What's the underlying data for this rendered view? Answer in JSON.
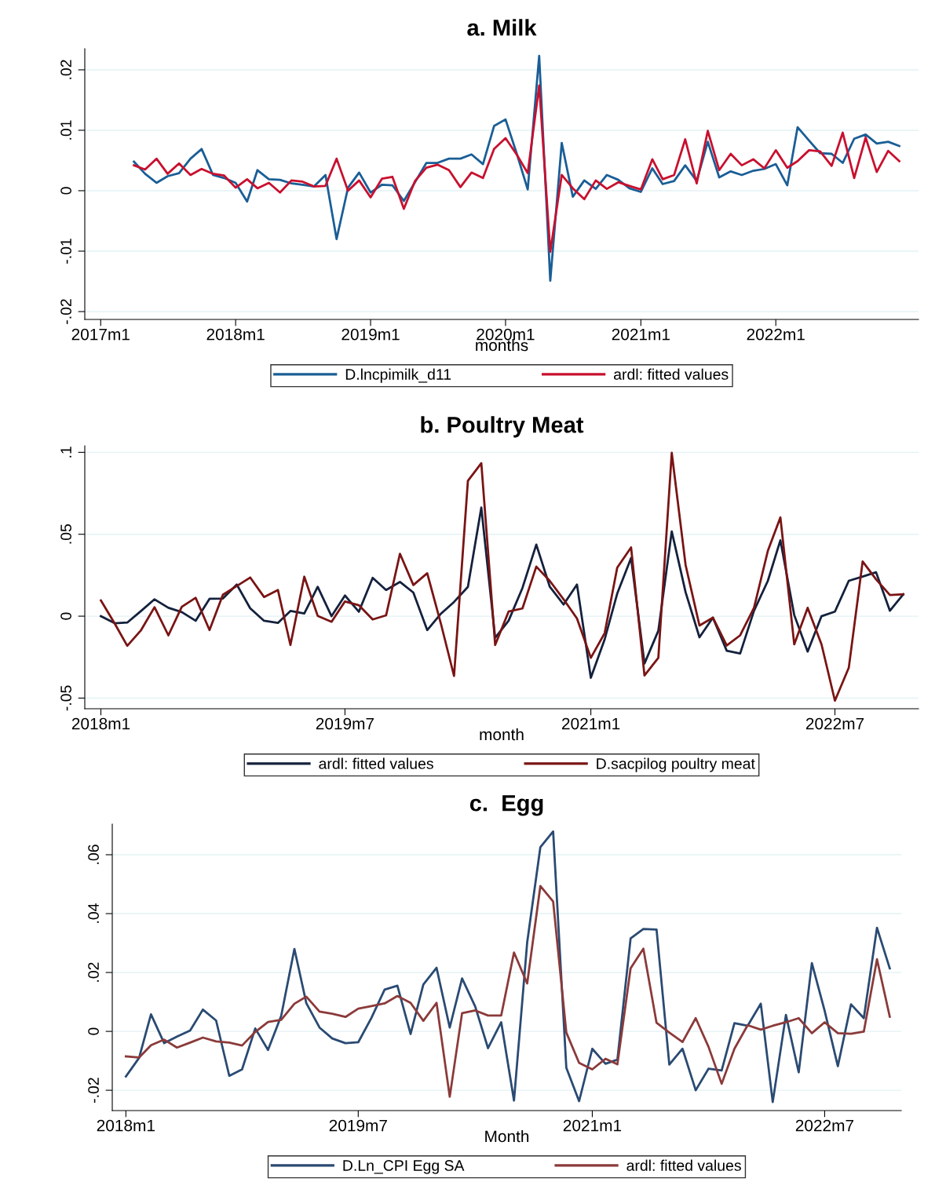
{
  "chart_data": [
    {
      "type": "line",
      "title": "a. Milk",
      "xlabel": "months",
      "x": [
        "2017-04",
        "2017-05",
        "2017-06",
        "2017-07",
        "2017-08",
        "2017-09",
        "2017-10",
        "2017-11",
        "2017-12",
        "2018-01",
        "2018-02",
        "2018-03",
        "2018-04",
        "2018-05",
        "2018-06",
        "2018-07",
        "2018-08",
        "2018-09",
        "2018-10",
        "2018-11",
        "2018-12",
        "2019-01",
        "2019-02",
        "2019-03",
        "2019-04",
        "2019-05",
        "2019-06",
        "2019-07",
        "2019-08",
        "2019-09",
        "2019-10",
        "2019-11",
        "2019-12",
        "2020-01",
        "2020-02",
        "2020-03",
        "2020-04",
        "2020-05",
        "2020-06",
        "2020-07",
        "2020-08",
        "2020-09",
        "2020-10",
        "2020-11",
        "2020-12",
        "2021-01",
        "2021-02",
        "2021-03",
        "2021-04",
        "2021-05",
        "2021-06",
        "2021-07",
        "2021-08",
        "2021-09",
        "2021-10",
        "2021-11",
        "2021-12",
        "2022-01",
        "2022-02",
        "2022-03",
        "2022-04",
        "2022-05",
        "2022-06",
        "2022-07",
        "2022-08",
        "2022-09",
        "2022-10",
        "2022-11",
        "2022-12"
      ],
      "xlim": [
        "2016-11-19",
        "2023-01-22"
      ],
      "xticks": [
        {
          "value": "2017-01",
          "label": "2017m1"
        },
        {
          "value": "2018-01",
          "label": "2018m1"
        },
        {
          "value": "2019-01",
          "label": "2019m1"
        },
        {
          "value": "2020-01",
          "label": "2020m1"
        },
        {
          "value": "2021-01",
          "label": "2021m1"
        },
        {
          "value": "2022-01",
          "label": "2022m1"
        }
      ],
      "ylim": [
        -0.0213,
        0.0235
      ],
      "yticks": [
        {
          "value": -0.02,
          "label": "-.02"
        },
        {
          "value": -0.01,
          "label": "-.01"
        },
        {
          "value": 0,
          "label": "0"
        },
        {
          "value": 0.01,
          "label": ".01"
        },
        {
          "value": 0.02,
          "label": ".02"
        }
      ],
      "grid": "y",
      "legend": "bottom",
      "line_style": "solid",
      "series": [
        {
          "name": "D.lncpimilk_d11",
          "color": "#1a5e96",
          "values": [
            0.0048,
            0.0028,
            0.0013,
            0.0024,
            0.0029,
            0.0053,
            0.0069,
            0.0026,
            0.0021,
            0.0013,
            -0.0018,
            0.0034,
            0.0019,
            0.0018,
            0.0012,
            0.001,
            0.0007,
            0.0026,
            -0.008,
            0.0005,
            0.003,
            -0.0003,
            0.001,
            0.0009,
            -0.0017,
            0.0014,
            0.0046,
            0.0046,
            0.0053,
            0.0053,
            0.006,
            0.0044,
            0.0107,
            0.0118,
            0.006,
            0.0002,
            0.0223,
            -0.0149,
            0.0079,
            -0.001,
            0.0017,
            0.0003,
            0.0026,
            0.0018,
            0.0004,
            -0.0002,
            0.0037,
            0.0011,
            0.0016,
            0.0042,
            0.0016,
            0.0081,
            0.0022,
            0.0032,
            0.0026,
            0.0033,
            0.0036,
            0.0044,
            0.0009,
            0.0105,
            0.0083,
            0.0062,
            0.0061,
            0.0046,
            0.0086,
            0.0093,
            0.0078,
            0.0081,
            0.0074
          ]
        },
        {
          "name": "ardl: fitted values",
          "color": "#c8102e",
          "values": [
            0.0042,
            0.0035,
            0.0053,
            0.0028,
            0.0045,
            0.0026,
            0.0036,
            0.0028,
            0.0025,
            0.0005,
            0.0019,
            0.0004,
            0.0013,
            -0.0003,
            0.0017,
            0.0015,
            0.0007,
            0.0008,
            0.0053,
            0.0,
            0.0017,
            -0.0011,
            0.002,
            0.0023,
            -0.003,
            0.0016,
            0.0038,
            0.0043,
            0.0034,
            0.0006,
            0.003,
            0.0021,
            0.0069,
            0.0087,
            0.0059,
            0.0029,
            0.0174,
            -0.0101,
            0.0026,
            0.0004,
            -0.0014,
            0.0017,
            0.0003,
            0.0014,
            0.0008,
            0.0002,
            0.0052,
            0.0019,
            0.0026,
            0.0085,
            0.0012,
            0.0099,
            0.0034,
            0.0061,
            0.0042,
            0.0052,
            0.0037,
            0.0067,
            0.0038,
            0.0049,
            0.0067,
            0.0065,
            0.0041,
            0.0096,
            0.0021,
            0.0088,
            0.0031,
            0.0066,
            0.0049
          ]
        }
      ]
    },
    {
      "type": "line",
      "title": "b. Poultry Meat",
      "xlabel": "month",
      "x": [
        "2018-01",
        "2018-02",
        "2018-03",
        "2018-04",
        "2018-05",
        "2018-06",
        "2018-07",
        "2018-08",
        "2018-09",
        "2018-10",
        "2018-11",
        "2018-12",
        "2019-01",
        "2019-02",
        "2019-03",
        "2019-04",
        "2019-05",
        "2019-06",
        "2019-07",
        "2019-08",
        "2019-09",
        "2019-10",
        "2019-11",
        "2019-12",
        "2020-01",
        "2020-02",
        "2020-03",
        "2020-04",
        "2020-05",
        "2020-06",
        "2020-07",
        "2020-08",
        "2020-09",
        "2020-10",
        "2020-11",
        "2020-12",
        "2021-01",
        "2021-02",
        "2021-03",
        "2021-04",
        "2021-05",
        "2021-06",
        "2021-07",
        "2021-08",
        "2021-09",
        "2021-10",
        "2021-11",
        "2021-12",
        "2022-01",
        "2022-02",
        "2022-03",
        "2022-04",
        "2022-05",
        "2022-06",
        "2022-07",
        "2022-08",
        "2022-09",
        "2022-10",
        "2022-11",
        "2022-12"
      ],
      "xlim": [
        "2017-11-26",
        "2023-01-04"
      ],
      "xticks": [
        {
          "value": "2018-01",
          "label": "2018m1"
        },
        {
          "value": "2019-07",
          "label": "2019m7"
        },
        {
          "value": "2021-01",
          "label": "2021m1"
        },
        {
          "value": "2022-07",
          "label": "2022m7"
        }
      ],
      "ylim": [
        -0.0565,
        0.104
      ],
      "yticks": [
        {
          "value": -0.05,
          "label": "-.05"
        },
        {
          "value": 0,
          "label": "0"
        },
        {
          "value": 0.05,
          "label": ".05"
        },
        {
          "value": 0.1,
          "label": ".1"
        }
      ],
      "grid": "y",
      "legend": "bottom",
      "line_style": "solid",
      "series": [
        {
          "name": "ardl: fitted values",
          "color": "#14213d",
          "values": [
            0.0,
            -0.0043,
            -0.0039,
            0.0032,
            0.0103,
            0.0051,
            0.0025,
            -0.0028,
            0.0106,
            0.0108,
            0.0193,
            0.0048,
            -0.0028,
            -0.0041,
            0.0032,
            0.0016,
            0.0179,
            0.0,
            0.0126,
            0.0027,
            0.0234,
            0.016,
            0.0209,
            0.0144,
            -0.0085,
            0.0016,
            0.0087,
            0.0179,
            0.0663,
            -0.0132,
            -0.0028,
            0.0172,
            0.0437,
            0.0181,
            0.0071,
            0.0193,
            -0.0376,
            -0.0141,
            0.0138,
            0.0355,
            -0.0289,
            -0.0089,
            0.0517,
            0.0146,
            -0.0129,
            -0.0009,
            -0.0211,
            -0.0228,
            0.0033,
            0.0216,
            0.0463,
            0.0007,
            -0.0216,
            0.0,
            0.0028,
            0.0216,
            0.0242,
            0.0268,
            0.0033,
            0.0134
          ]
        },
        {
          "name": "D.sacpilog poultry meat",
          "color": "#7a1414",
          "values": [
            0.0096,
            -0.0045,
            -0.0181,
            -0.0085,
            0.0055,
            -0.0117,
            0.0057,
            0.0112,
            -0.0085,
            0.0131,
            0.0184,
            0.0236,
            0.0117,
            0.016,
            -0.0176,
            0.0241,
            0.0002,
            -0.0034,
            0.009,
            0.0067,
            -0.002,
            0.0005,
            0.0381,
            0.019,
            0.0262,
            -0.005,
            -0.0365,
            0.0826,
            0.0934,
            -0.0176,
            0.0028,
            0.0047,
            0.0303,
            0.0216,
            0.0103,
            -0.0014,
            -0.0254,
            -0.0103,
            0.0296,
            0.042,
            -0.0362,
            -0.0254,
            0.0997,
            0.0312,
            -0.0057,
            -0.0009,
            -0.0179,
            -0.0117,
            0.0051,
            0.0399,
            0.0603,
            -0.0172,
            0.0051,
            -0.0172,
            -0.0516,
            -0.0315,
            0.0334,
            0.0225,
            0.0129,
            0.0134
          ]
        }
      ]
    },
    {
      "type": "line",
      "title": "c.  Egg",
      "xlabel": "Month",
      "x": [
        "2018-01",
        "2018-02",
        "2018-03",
        "2018-04",
        "2018-05",
        "2018-06",
        "2018-07",
        "2018-08",
        "2018-09",
        "2018-10",
        "2018-11",
        "2018-12",
        "2019-01",
        "2019-02",
        "2019-03",
        "2019-04",
        "2019-05",
        "2019-06",
        "2019-07",
        "2019-08",
        "2019-09",
        "2019-10",
        "2019-11",
        "2019-12",
        "2020-01",
        "2020-02",
        "2020-03",
        "2020-04",
        "2020-05",
        "2020-06",
        "2020-07",
        "2020-08",
        "2020-09",
        "2020-10",
        "2020-11",
        "2020-12",
        "2021-01",
        "2021-02",
        "2021-03",
        "2021-04",
        "2021-05",
        "2021-06",
        "2021-07",
        "2021-08",
        "2021-09",
        "2021-10",
        "2021-11",
        "2021-12",
        "2022-01",
        "2022-02",
        "2022-03",
        "2022-04",
        "2022-05",
        "2022-06",
        "2022-07",
        "2022-08",
        "2022-09",
        "2022-10",
        "2022-11",
        "2022-12"
      ],
      "xlim": [
        "2017-11-30",
        "2022-12-28"
      ],
      "xticks": [
        {
          "value": "2018-01",
          "label": "2018m1"
        },
        {
          "value": "2019-07",
          "label": "2019m7"
        },
        {
          "value": "2021-01",
          "label": "2021m1"
        },
        {
          "value": "2022-07",
          "label": "2022m7"
        }
      ],
      "ylim": [
        -0.0269,
        0.0704
      ],
      "yticks": [
        {
          "value": -0.02,
          "label": "-.02"
        },
        {
          "value": 0,
          "label": "0"
        },
        {
          "value": 0.02,
          "label": ".02"
        },
        {
          "value": 0.04,
          "label": ".04"
        },
        {
          "value": 0.06,
          "label": ".06"
        }
      ],
      "grid": "y",
      "legend": "bottom",
      "line_style": "solid",
      "series": [
        {
          "name": "D.Ln_CPI Egg SA",
          "color": "#2a4a72",
          "values": [
            -0.0153,
            -0.009,
            0.0058,
            -0.004,
            -0.0018,
            0.0003,
            0.0074,
            0.0037,
            -0.0151,
            -0.0129,
            0.001,
            -0.0063,
            0.0053,
            0.028,
            0.0096,
            0.0013,
            -0.0024,
            -0.004,
            -0.0037,
            0.0046,
            0.0142,
            0.0155,
            -0.0009,
            0.0159,
            0.0216,
            0.0013,
            0.018,
            0.0084,
            -0.0057,
            0.0031,
            -0.0235,
            0.0302,
            0.0626,
            0.0679,
            -0.0124,
            -0.0237,
            -0.0059,
            -0.011,
            -0.0096,
            0.0316,
            0.0348,
            0.0346,
            -0.0113,
            -0.0059,
            -0.02,
            -0.0127,
            -0.0133,
            0.0028,
            0.0019,
            0.0094,
            -0.024,
            0.0056,
            -0.0139,
            0.0232,
            0.007,
            -0.0118,
            0.0092,
            0.0045,
            0.0352,
            0.0214
          ]
        },
        {
          "name": "ardl: fitted values",
          "color": "#8b3a3a",
          "values": [
            -0.0085,
            -0.0089,
            -0.0047,
            -0.0028,
            -0.0055,
            -0.0038,
            -0.0021,
            -0.0034,
            -0.0038,
            -0.0048,
            -0.0002,
            0.0032,
            0.0039,
            0.0094,
            0.0118,
            0.0067,
            0.006,
            0.0049,
            0.0077,
            0.0086,
            0.0095,
            0.012,
            0.0097,
            0.0036,
            0.0097,
            -0.0222,
            0.0062,
            0.0071,
            0.0054,
            0.0054,
            0.0268,
            0.0163,
            0.0494,
            0.0441,
            -0.0004,
            -0.0107,
            -0.0129,
            -0.0093,
            -0.0112,
            0.0214,
            0.0281,
            0.0029,
            -0.0004,
            -0.0036,
            0.0045,
            -0.0052,
            -0.0178,
            -0.0059,
            0.0021,
            0.0006,
            0.0019,
            0.0031,
            0.0045,
            -0.0006,
            0.0031,
            -0.0006,
            -0.0008,
            -0.0001,
            0.0245,
            0.005
          ]
        }
      ]
    }
  ]
}
